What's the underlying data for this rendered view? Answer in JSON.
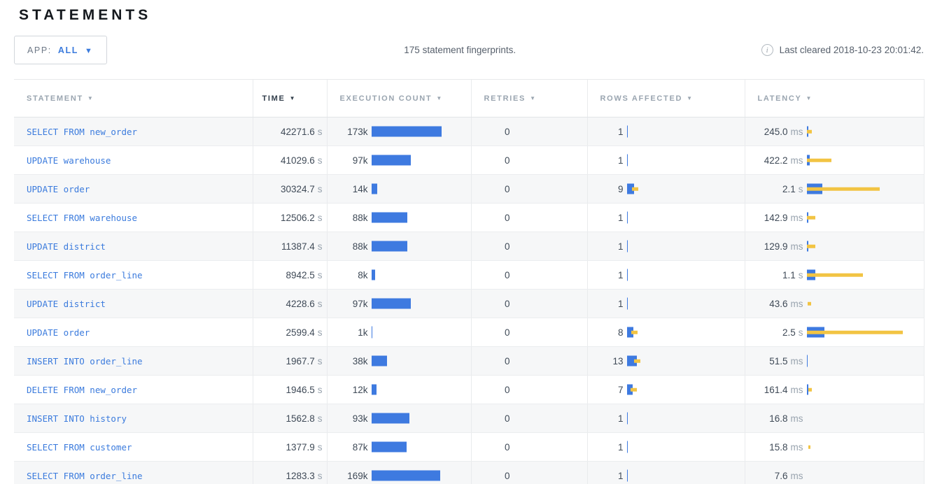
{
  "page": {
    "title": "STATEMENTS"
  },
  "icons": {
    "sort_arrow": "▼",
    "dropdown_caret": "▼",
    "info": "i"
  },
  "colors": {
    "bar_blue": "#3E7AE0",
    "bar_yellow": "#F2C443",
    "link_blue": "#3B7BDD"
  },
  "controls": {
    "app_filter": {
      "label": "APP:",
      "value": "ALL"
    },
    "summary": "175 statement fingerprints.",
    "last_cleared": "Last cleared 2018-10-23 20:01:42."
  },
  "table": {
    "columns": [
      {
        "key": "statement",
        "label": "STATEMENT",
        "sorted": false
      },
      {
        "key": "time",
        "label": "TIME",
        "sorted": true
      },
      {
        "key": "execution-count",
        "label": "EXECUTION COUNT",
        "sorted": false
      },
      {
        "key": "retries",
        "label": "RETRIES",
        "sorted": false
      },
      {
        "key": "rows-affected",
        "label": "ROWS AFFECTED",
        "sorted": false
      },
      {
        "key": "latency",
        "label": "LATENCY",
        "sorted": false
      }
    ],
    "rows": [
      {
        "statement": "SELECT FROM new_order",
        "time": "42271.6",
        "time_unit": "s",
        "exec": {
          "label": "173k",
          "bar": 100
        },
        "retries": "0",
        "rows": {
          "label": "1",
          "bar": 1.5,
          "tick": true
        },
        "latency": {
          "value": "245.0",
          "unit": "ms",
          "bar": 2.5,
          "dev_from": 0,
          "dev_to": 7
        }
      },
      {
        "statement": "UPDATE warehouse",
        "time": "41029.6",
        "time_unit": "s",
        "exec": {
          "label": "97k",
          "bar": 56
        },
        "retries": "0",
        "rows": {
          "label": "1",
          "bar": 1.5,
          "tick": true
        },
        "latency": {
          "value": "422.2",
          "unit": "ms",
          "bar": 4,
          "dev_from": 0,
          "dev_to": 35
        }
      },
      {
        "statement": "UPDATE order",
        "time": "30324.7",
        "time_unit": "s",
        "exec": {
          "label": "14k",
          "bar": 8
        },
        "retries": "0",
        "rows": {
          "label": "9",
          "bar": 10,
          "dev_from": 7,
          "dev_to": 16
        },
        "latency": {
          "value": "2.1",
          "unit": "s",
          "bar": 22,
          "dev_from": 0,
          "dev_to": 104
        }
      },
      {
        "statement": "SELECT FROM warehouse",
        "time": "12506.2",
        "time_unit": "s",
        "exec": {
          "label": "88k",
          "bar": 51
        },
        "retries": "0",
        "rows": {
          "label": "1",
          "bar": 1.5,
          "tick": true
        },
        "latency": {
          "value": "142.9",
          "unit": "ms",
          "bar": 2,
          "dev_from": 0,
          "dev_to": 12
        }
      },
      {
        "statement": "UPDATE district",
        "time": "11387.4",
        "time_unit": "s",
        "exec": {
          "label": "88k",
          "bar": 51
        },
        "retries": "0",
        "rows": {
          "label": "1",
          "bar": 1.5,
          "tick": true
        },
        "latency": {
          "value": "129.9",
          "unit": "ms",
          "bar": 2,
          "dev_from": 0,
          "dev_to": 12
        }
      },
      {
        "statement": "SELECT FROM order_line",
        "time": "8942.5",
        "time_unit": "s",
        "exec": {
          "label": "8k",
          "bar": 5
        },
        "retries": "0",
        "rows": {
          "label": "1",
          "bar": 1.5,
          "tick": true
        },
        "latency": {
          "value": "1.1",
          "unit": "s",
          "bar": 12,
          "dev_from": 0,
          "dev_to": 80
        }
      },
      {
        "statement": "UPDATE district",
        "time": "4228.6",
        "time_unit": "s",
        "exec": {
          "label": "97k",
          "bar": 56
        },
        "retries": "0",
        "rows": {
          "label": "1",
          "bar": 1.5,
          "tick": true
        },
        "latency": {
          "value": "43.6",
          "unit": "ms",
          "dev_from": 1,
          "dev_to": 6
        }
      },
      {
        "statement": "UPDATE order",
        "time": "2599.4",
        "time_unit": "s",
        "exec": {
          "label": "1k",
          "bar": 1.5,
          "tick": true
        },
        "retries": "0",
        "rows": {
          "label": "8",
          "bar": 9,
          "dev_from": 6,
          "dev_to": 15
        },
        "latency": {
          "value": "2.5",
          "unit": "s",
          "bar": 25,
          "dev_from": 0,
          "dev_to": 137
        }
      },
      {
        "statement": "INSERT INTO order_line",
        "time": "1967.7",
        "time_unit": "s",
        "exec": {
          "label": "38k",
          "bar": 22
        },
        "retries": "0",
        "rows": {
          "label": "13",
          "bar": 14,
          "dev_from": 10,
          "dev_to": 19
        },
        "latency": {
          "value": "51.5",
          "unit": "ms",
          "bar": 1.5,
          "tick": true
        }
      },
      {
        "statement": "DELETE FROM new_order",
        "time": "1946.5",
        "time_unit": "s",
        "exec": {
          "label": "12k",
          "bar": 7
        },
        "retries": "0",
        "rows": {
          "label": "7",
          "bar": 8,
          "dev_from": 5,
          "dev_to": 14
        },
        "latency": {
          "value": "161.4",
          "unit": "ms",
          "bar": 2,
          "dev_from": 2,
          "dev_to": 7
        }
      },
      {
        "statement": "INSERT INTO history",
        "time": "1562.8",
        "time_unit": "s",
        "exec": {
          "label": "93k",
          "bar": 54
        },
        "retries": "0",
        "rows": {
          "label": "1",
          "bar": 1.5,
          "tick": true
        },
        "latency": {
          "value": "16.8",
          "unit": "ms"
        }
      },
      {
        "statement": "SELECT FROM customer",
        "time": "1377.9",
        "time_unit": "s",
        "exec": {
          "label": "87k",
          "bar": 50
        },
        "retries": "0",
        "rows": {
          "label": "1",
          "bar": 1.5,
          "tick": true
        },
        "latency": {
          "value": "15.8",
          "unit": "ms",
          "dev_from": 2,
          "dev_to": 5
        }
      },
      {
        "statement": "SELECT FROM order_line",
        "time": "1283.3",
        "time_unit": "s",
        "exec": {
          "label": "169k",
          "bar": 98
        },
        "retries": "0",
        "rows": {
          "label": "1",
          "bar": 1.5,
          "tick": true
        },
        "latency": {
          "value": "7.6",
          "unit": "ms"
        }
      }
    ]
  }
}
